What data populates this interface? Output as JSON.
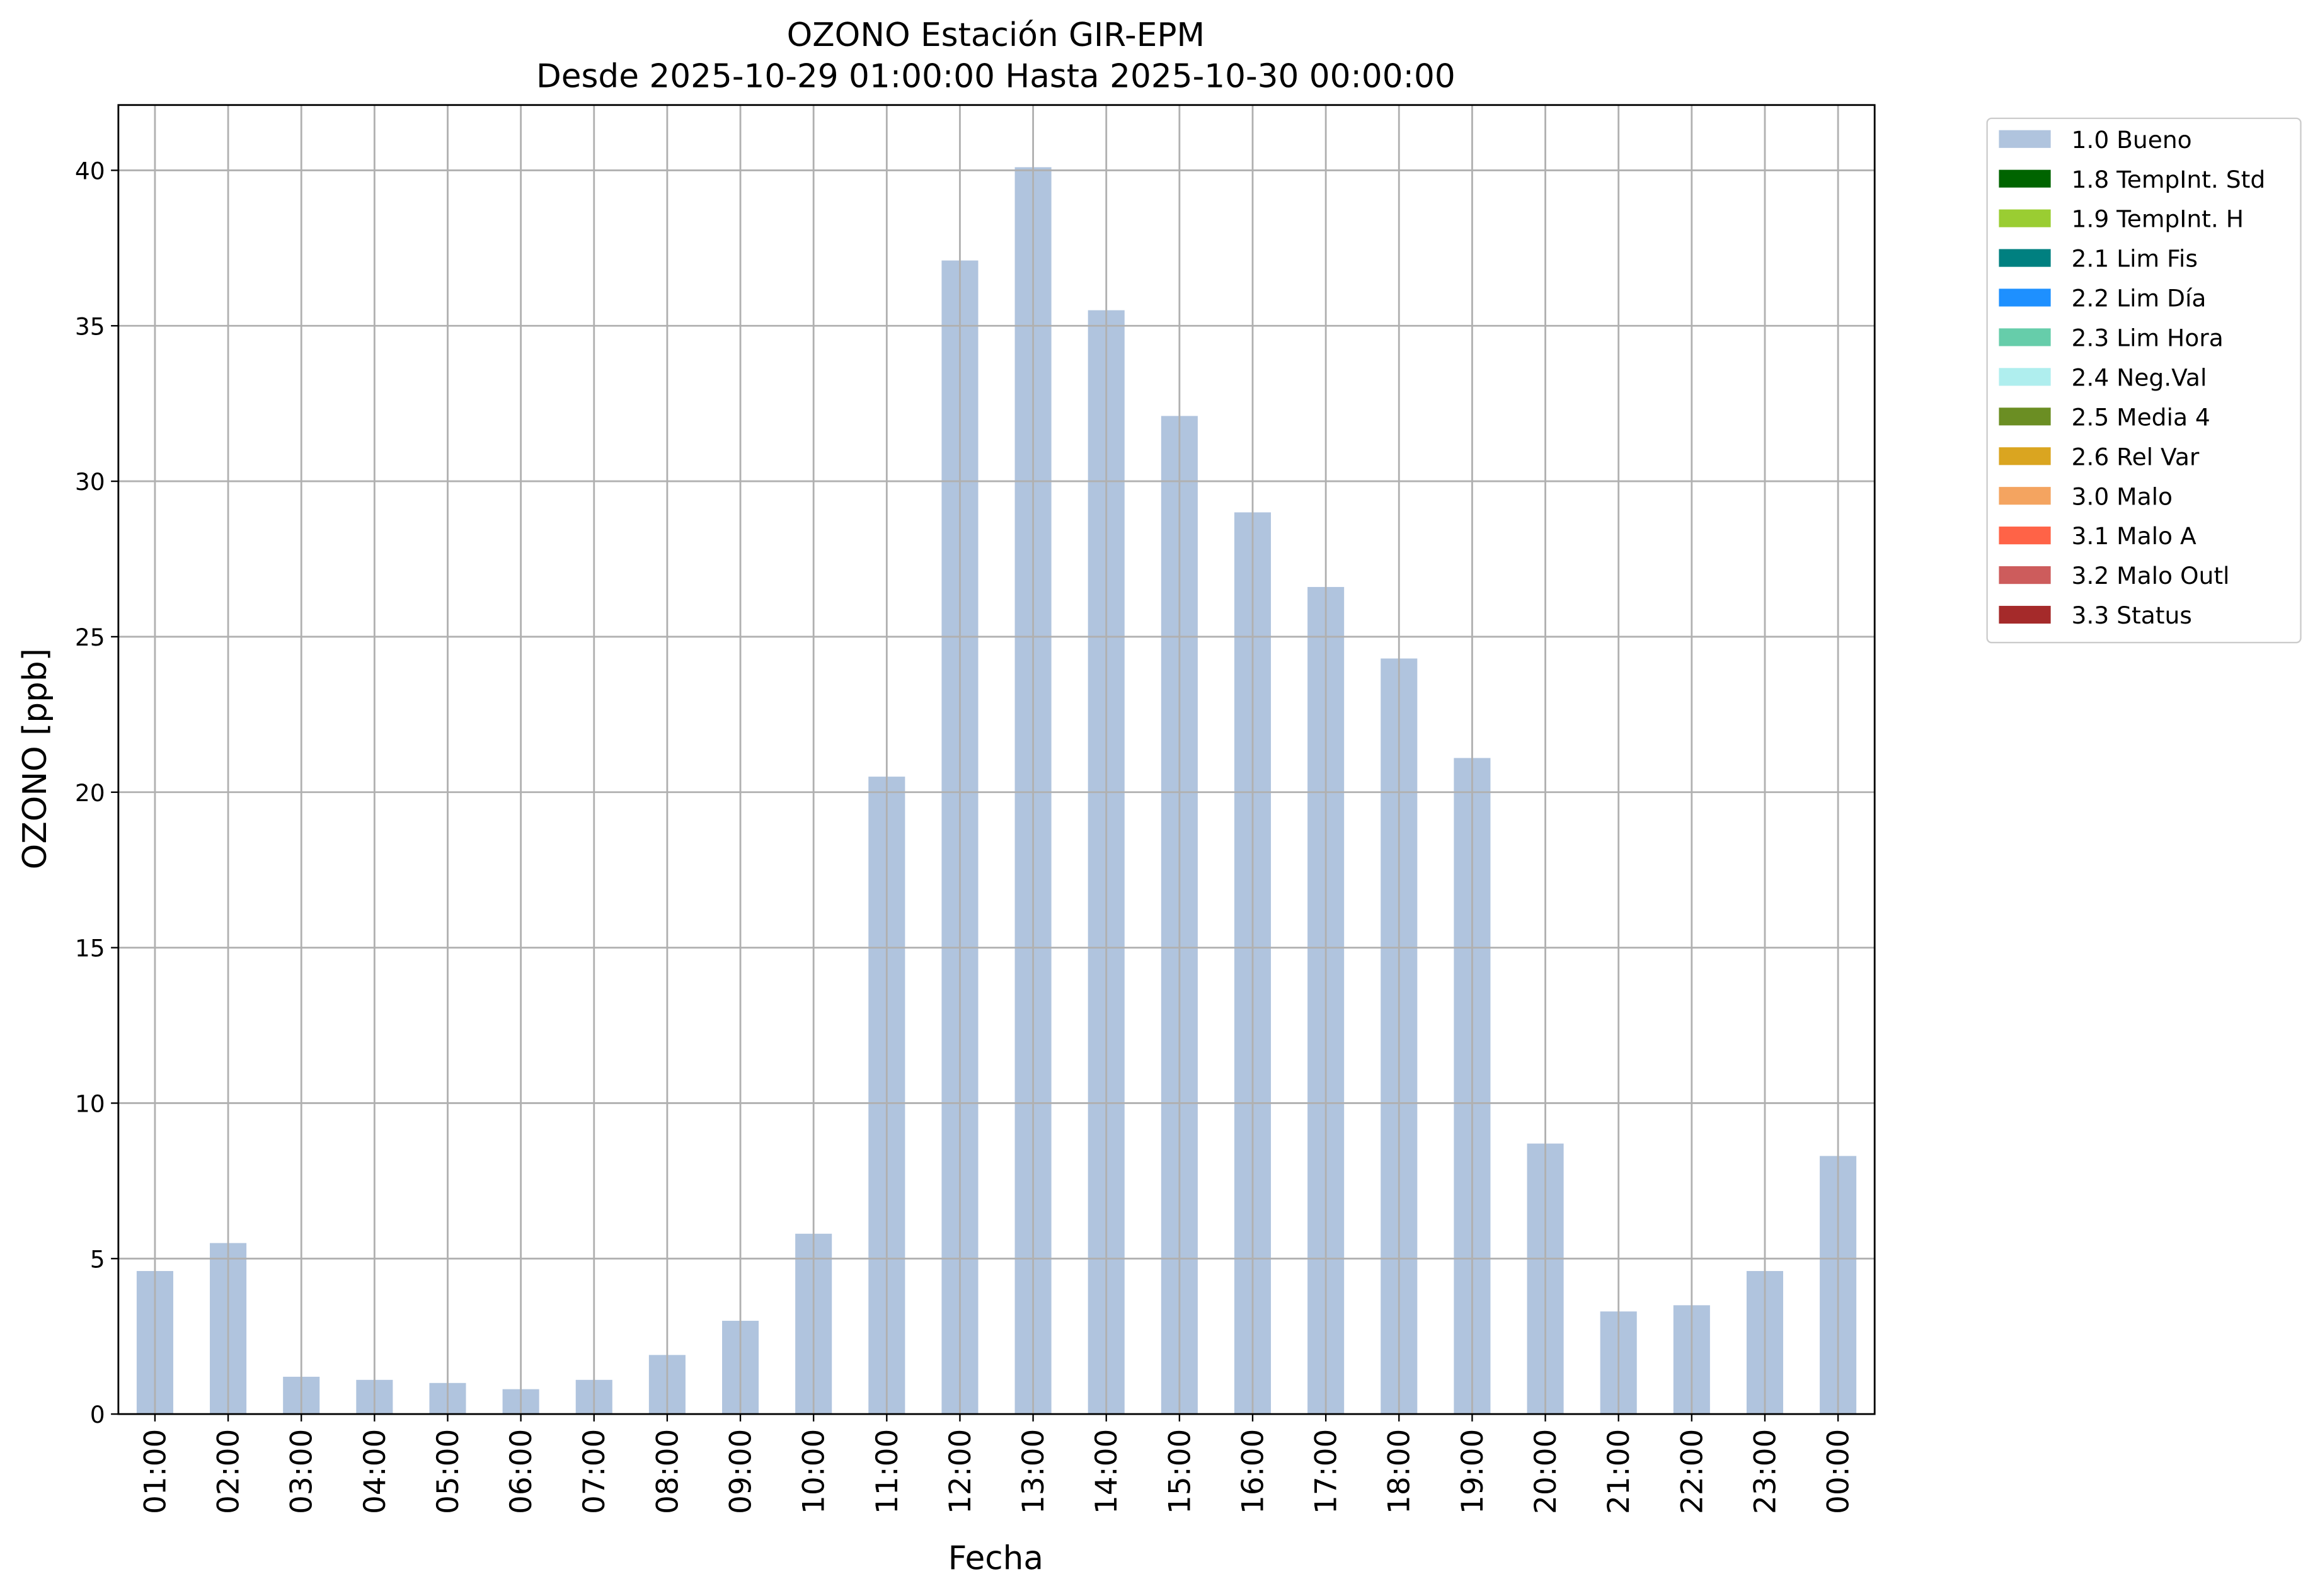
{
  "chart_data": {
    "type": "bar",
    "stacked": true,
    "title": "OZONO Estación GIR-EPM",
    "subtitle": "Desde 2025-10-29 01:00:00 Hasta 2025-10-30 00:00:00",
    "x_label": "Fecha",
    "y_label": "OZONO [ppb]",
    "categories": [
      "01:00",
      "02:00",
      "03:00",
      "04:00",
      "05:00",
      "06:00",
      "07:00",
      "08:00",
      "09:00",
      "10:00",
      "11:00",
      "12:00",
      "13:00",
      "14:00",
      "15:00",
      "16:00",
      "17:00",
      "18:00",
      "19:00",
      "20:00",
      "21:00",
      "22:00",
      "23:00",
      "00:00"
    ],
    "ylim": [
      0,
      42.1
    ],
    "yticks": [
      0,
      5,
      10,
      15,
      20,
      25,
      30,
      35,
      40
    ],
    "grid": true,
    "legend": "outside-upper-right",
    "series": [
      {
        "name": "1.0 Bueno",
        "color": "#b0c4de",
        "values": [
          4.6,
          5.5,
          1.2,
          1.1,
          1.0,
          0.8,
          1.1,
          1.9,
          3.0,
          5.8,
          20.5,
          37.1,
          40.1,
          35.5,
          32.1,
          29.0,
          26.6,
          24.3,
          21.1,
          8.7,
          3.3,
          3.5,
          4.6,
          8.3
        ]
      },
      {
        "name": "1.8 TempInt. Std",
        "color": "#006400",
        "values": [
          0,
          0,
          0,
          0,
          0,
          0,
          0,
          0,
          0,
          0,
          0,
          0,
          0,
          0,
          0,
          0,
          0,
          0,
          0,
          0,
          0,
          0,
          0,
          0
        ]
      },
      {
        "name": "1.9 TempInt. H",
        "color": "#9acd32",
        "values": [
          0,
          0,
          0,
          0,
          0,
          0,
          0,
          0,
          0,
          0,
          0,
          0,
          0,
          0,
          0,
          0,
          0,
          0,
          0,
          0,
          0,
          0,
          0,
          0
        ]
      },
      {
        "name": "2.1 Lim Fis",
        "color": "#008080",
        "values": [
          0,
          0,
          0,
          0,
          0,
          0,
          0,
          0,
          0,
          0,
          0,
          0,
          0,
          0,
          0,
          0,
          0,
          0,
          0,
          0,
          0,
          0,
          0,
          0
        ]
      },
      {
        "name": "2.2 Lim Día",
        "color": "#1e90ff",
        "values": [
          0,
          0,
          0,
          0,
          0,
          0,
          0,
          0,
          0,
          0,
          0,
          0,
          0,
          0,
          0,
          0,
          0,
          0,
          0,
          0,
          0,
          0,
          0,
          0
        ]
      },
      {
        "name": "2.3 Lim Hora",
        "color": "#66cdaa",
        "values": [
          0,
          0,
          0,
          0,
          0,
          0,
          0,
          0,
          0,
          0,
          0,
          0,
          0,
          0,
          0,
          0,
          0,
          0,
          0,
          0,
          0,
          0,
          0,
          0
        ]
      },
      {
        "name": "2.4 Neg.Val",
        "color": "#afeeee",
        "values": [
          0,
          0,
          0,
          0,
          0,
          0,
          0,
          0,
          0,
          0,
          0,
          0,
          0,
          0,
          0,
          0,
          0,
          0,
          0,
          0,
          0,
          0,
          0,
          0
        ]
      },
      {
        "name": "2.5 Media 4",
        "color": "#6b8e23",
        "values": [
          0,
          0,
          0,
          0,
          0,
          0,
          0,
          0,
          0,
          0,
          0,
          0,
          0,
          0,
          0,
          0,
          0,
          0,
          0,
          0,
          0,
          0,
          0,
          0
        ]
      },
      {
        "name": "2.6 Rel Var",
        "color": "#daa520",
        "values": [
          0,
          0,
          0,
          0,
          0,
          0,
          0,
          0,
          0,
          0,
          0,
          0,
          0,
          0,
          0,
          0,
          0,
          0,
          0,
          0,
          0,
          0,
          0,
          0
        ]
      },
      {
        "name": "3.0 Malo",
        "color": "#f4a460",
        "values": [
          0,
          0,
          0,
          0,
          0,
          0,
          0,
          0,
          0,
          0,
          0,
          0,
          0,
          0,
          0,
          0,
          0,
          0,
          0,
          0,
          0,
          0,
          0,
          0
        ]
      },
      {
        "name": "3.1 Malo A",
        "color": "#ff6347",
        "values": [
          0,
          0,
          0,
          0,
          0,
          0,
          0,
          0,
          0,
          0,
          0,
          0,
          0,
          0,
          0,
          0,
          0,
          0,
          0,
          0,
          0,
          0,
          0,
          0
        ]
      },
      {
        "name": "3.2 Malo Outl",
        "color": "#cd5c5c",
        "values": [
          0,
          0,
          0,
          0,
          0,
          0,
          0,
          0,
          0,
          0,
          0,
          0,
          0,
          0,
          0,
          0,
          0,
          0,
          0,
          0,
          0,
          0,
          0,
          0
        ]
      },
      {
        "name": "3.3 Status",
        "color": "#a52a2a",
        "values": [
          0,
          0,
          0,
          0,
          0,
          0,
          0,
          0,
          0,
          0,
          0,
          0,
          0,
          0,
          0,
          0,
          0,
          0,
          0,
          0,
          0,
          0,
          0,
          0
        ]
      }
    ]
  }
}
